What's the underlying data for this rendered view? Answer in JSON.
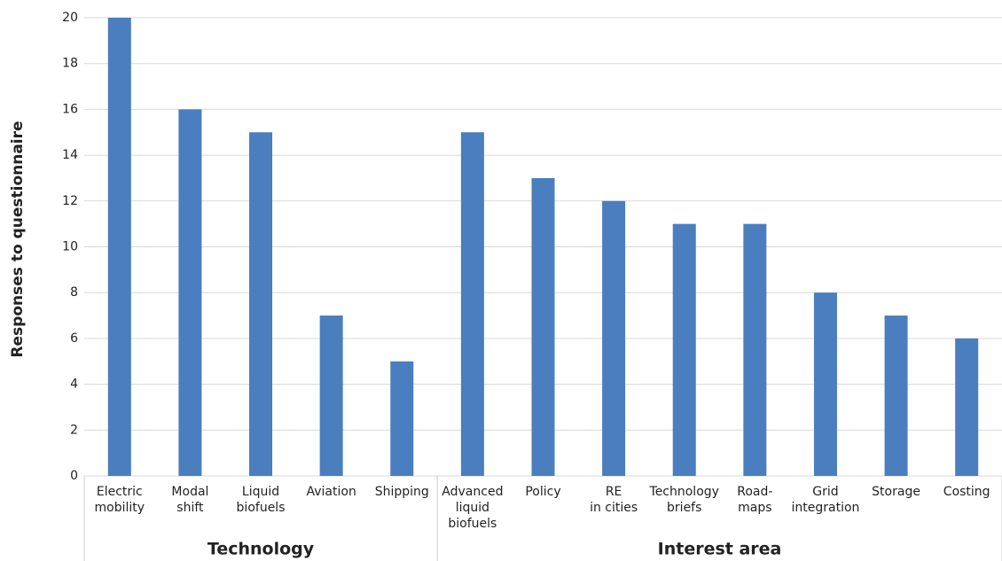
{
  "chart_data": {
    "type": "bar",
    "y_label": "Responses to questionnaire",
    "color": "#4a7ebf",
    "ylim": [
      0,
      20
    ],
    "yticks": [
      0,
      2,
      4,
      6,
      8,
      10,
      12,
      14,
      16,
      18,
      20
    ],
    "grid": true,
    "groups": [
      {
        "name": "Technology",
        "categories": [
          [
            "Electric",
            "mobility"
          ],
          [
            "Modal",
            "shift"
          ],
          [
            "Liquid",
            "biofuels"
          ],
          [
            "Aviation"
          ],
          [
            "Shipping"
          ]
        ],
        "values": [
          20,
          16,
          15,
          7,
          5
        ]
      },
      {
        "name": "Interest area",
        "categories": [
          [
            "Advanced",
            "liquid",
            "biofuels"
          ],
          [
            "Policy"
          ],
          [
            "RE",
            "in cities"
          ],
          [
            "Technology",
            "briefs"
          ],
          [
            "Road-",
            "maps"
          ],
          [
            "Grid",
            "integration"
          ],
          [
            "Storage"
          ],
          [
            "Costing"
          ]
        ],
        "values": [
          15,
          13,
          12,
          11,
          11,
          8,
          7,
          6
        ]
      }
    ]
  }
}
